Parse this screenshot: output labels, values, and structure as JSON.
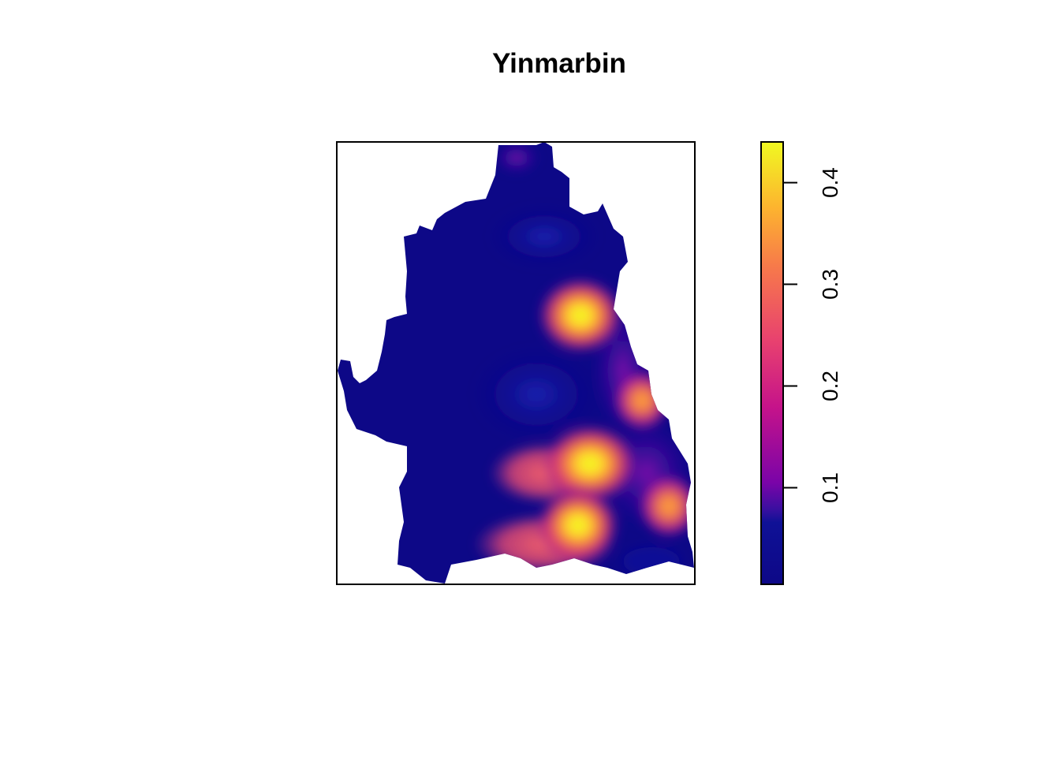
{
  "chart_data": {
    "type": "heatmap",
    "title": "Yinmarbin",
    "xlabel": "",
    "ylabel": "",
    "axes_shown": false,
    "colormap": "plasma",
    "colorbar": {
      "range": [
        0.005,
        0.44
      ],
      "ticks": [
        0.1,
        0.2,
        0.3,
        0.4
      ],
      "tick_labels": [
        "0.1",
        "0.2",
        "0.3",
        "0.4"
      ],
      "placement": "right",
      "colors": [
        "#0d0887",
        "#0f0f99",
        "#1a1aa8",
        "#6a00a8",
        "#b12a90",
        "#e16462",
        "#fca636",
        "#f0f921"
      ]
    },
    "hotspots": [
      {
        "label": "north-east",
        "value": 0.42
      },
      {
        "label": "east",
        "value": 0.32
      },
      {
        "label": "south-centre",
        "value": 0.43
      },
      {
        "label": "south",
        "value": 0.44
      },
      {
        "label": "south-east",
        "value": 0.36
      },
      {
        "label": "north tip",
        "value": 0.12
      }
    ],
    "background_value": 0.01
  }
}
